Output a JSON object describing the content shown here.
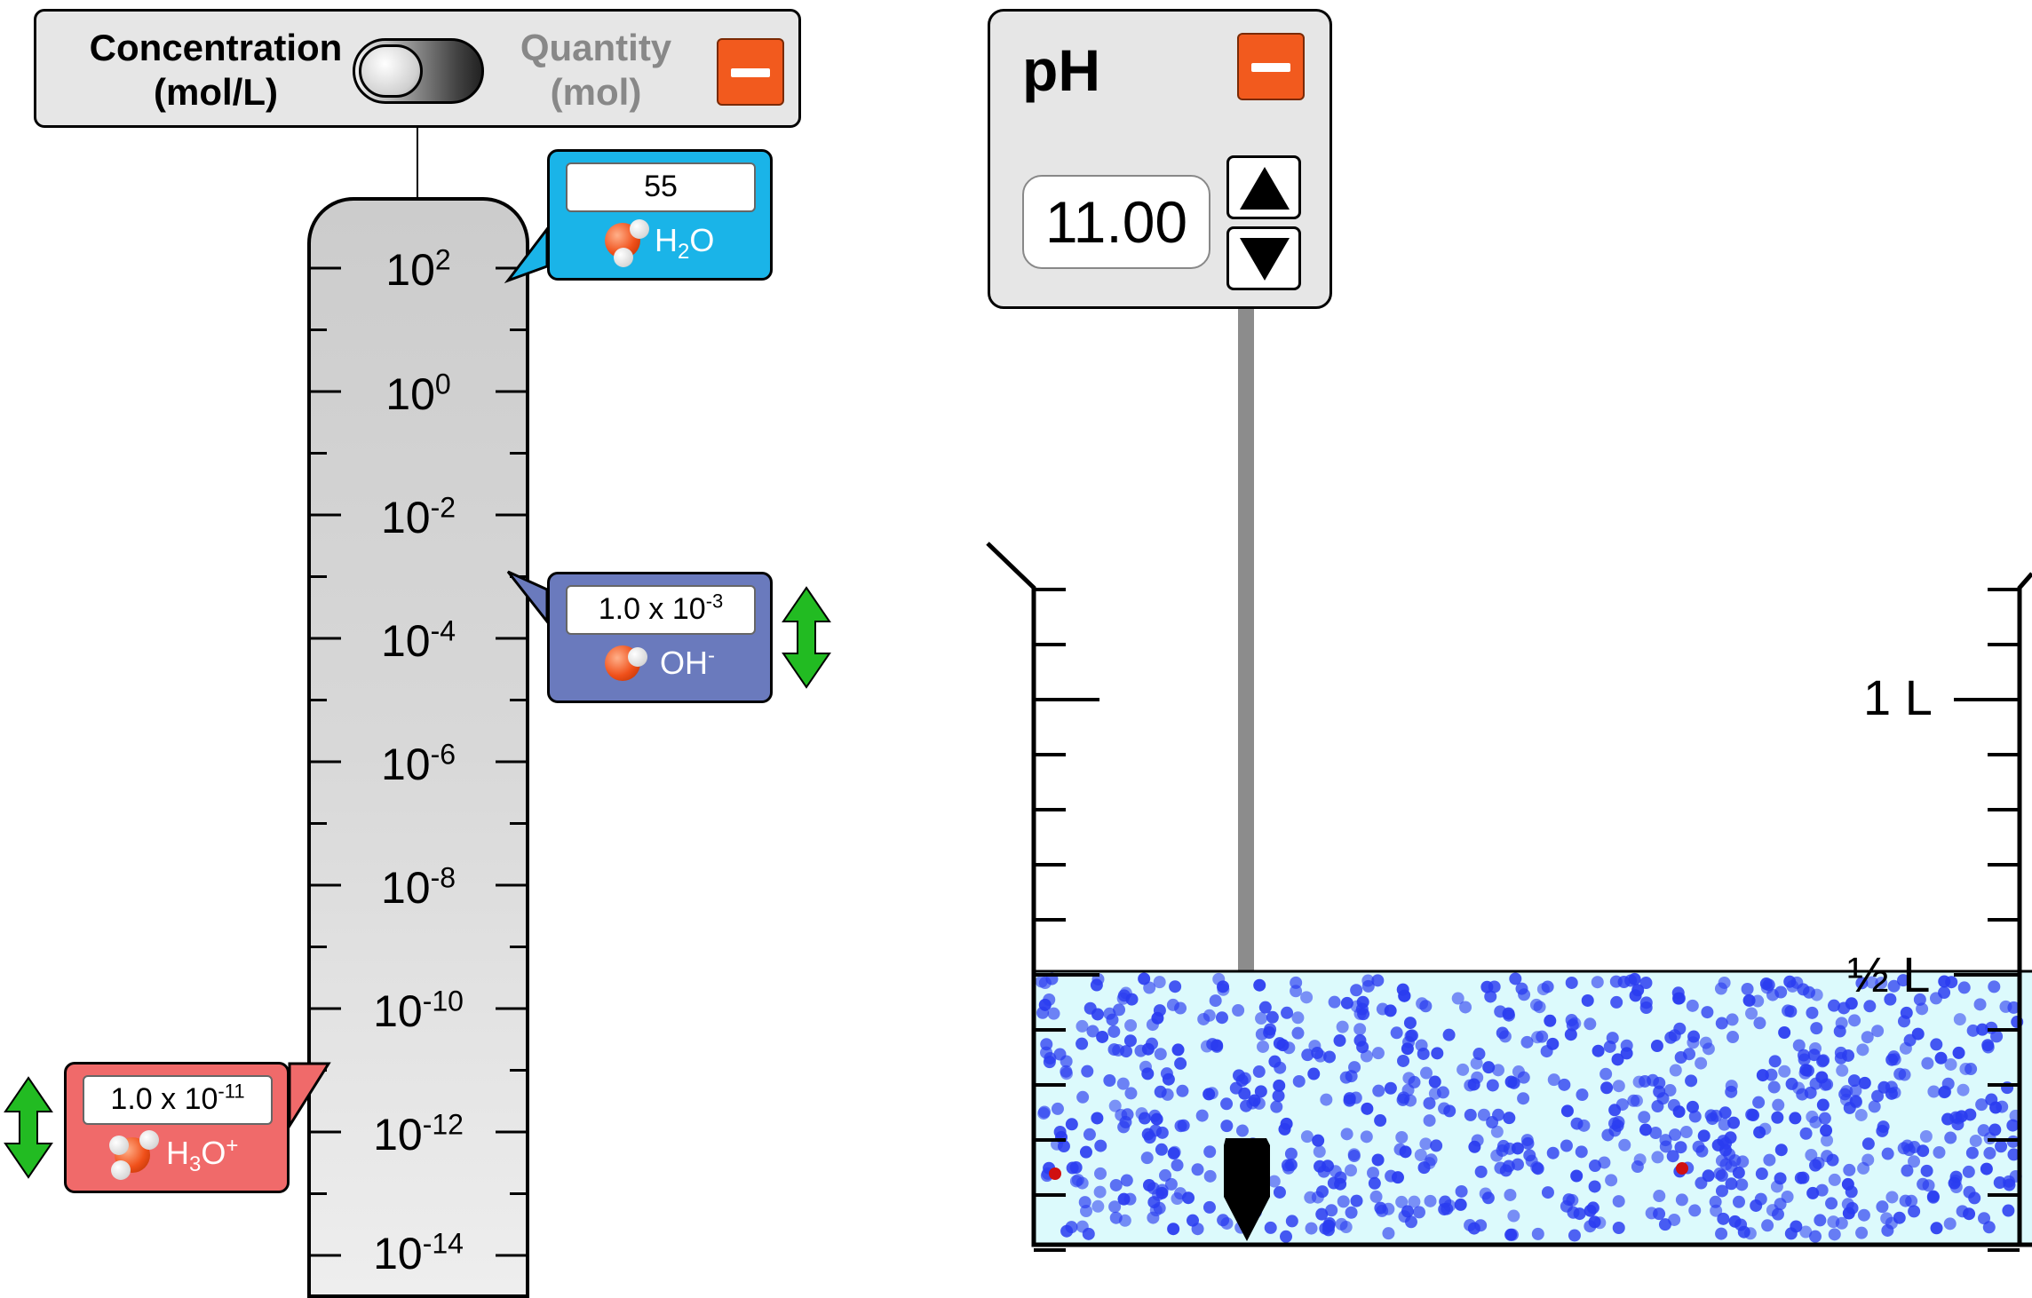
{
  "units_panel": {
    "concentration_line1": "Concentration",
    "concentration_line2": "(mol/L)",
    "quantity_line1": "Quantity",
    "quantity_line2": "(mol)",
    "selected": "Concentration (mol/L)"
  },
  "graph": {
    "scale_type": "log",
    "tick_exponents": [
      "2",
      "0",
      "-2",
      "-4",
      "-6",
      "-8",
      "-10",
      "-12",
      "-14"
    ],
    "tick_base": "10",
    "h2o": {
      "value": "55",
      "species": "H",
      "species_sub": "2",
      "species_tail": "O"
    },
    "oh": {
      "value_mantissa": "1.0 x 10",
      "value_exponent": "-3",
      "species": "OH",
      "species_sup": "-"
    },
    "h3o": {
      "value_mantissa": "1.0 x 10",
      "value_exponent": "-11",
      "species": "H",
      "species_sub": "3",
      "species_tail": "O",
      "species_sup": "+"
    }
  },
  "ph_meter": {
    "title": "pH",
    "value": "11.00"
  },
  "beaker": {
    "label_1L": "1 L",
    "label_half": "½ L",
    "solution_volume_fraction": 0.5
  },
  "colors": {
    "h2o": "#1ab4e8",
    "oh": "#6a7abd",
    "h3o": "#f06a6a",
    "minus_button": "#f25a1e",
    "solution": "#dcfafc",
    "oh_particle": "#2a3cf0",
    "h3o_particle": "#d01010",
    "drag_arrow": "#22bb22"
  }
}
